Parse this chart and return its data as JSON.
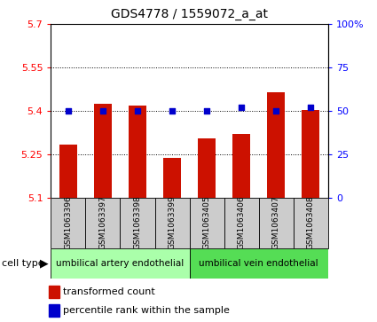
{
  "title": "GDS4778 / 1559072_a_at",
  "samples": [
    "GSM1063396",
    "GSM1063397",
    "GSM1063398",
    "GSM1063399",
    "GSM1063405",
    "GSM1063406",
    "GSM1063407",
    "GSM1063408"
  ],
  "bar_values": [
    5.285,
    5.425,
    5.42,
    5.24,
    5.305,
    5.32,
    5.465,
    5.405
  ],
  "percentile_values": [
    50,
    50,
    50,
    50,
    50,
    52,
    50,
    52
  ],
  "bar_bottom": 5.1,
  "ylim": [
    5.1,
    5.7
  ],
  "yticks": [
    5.1,
    5.25,
    5.4,
    5.55,
    5.7
  ],
  "ytick_labels": [
    "5.1",
    "5.25",
    "5.4",
    "5.55",
    "5.7"
  ],
  "right_yticks": [
    0,
    25,
    50,
    75,
    100
  ],
  "right_ytick_labels": [
    "0",
    "25",
    "50",
    "75",
    "100%"
  ],
  "right_ylim": [
    0,
    100
  ],
  "cell_type_groups": [
    {
      "label": "umbilical artery endothelial",
      "start": 0,
      "end": 4,
      "color": "#aaffaa"
    },
    {
      "label": "umbilical vein endothelial",
      "start": 4,
      "end": 8,
      "color": "#55dd55"
    }
  ],
  "bar_color": "#cc1100",
  "percentile_color": "#0000cc",
  "grid_color": "#000000",
  "bg_color": "#ffffff",
  "label_area_color": "#cccccc",
  "cell_type_arrow_label": "cell type",
  "legend_bar_label": "transformed count",
  "legend_dot_label": "percentile rank within the sample"
}
